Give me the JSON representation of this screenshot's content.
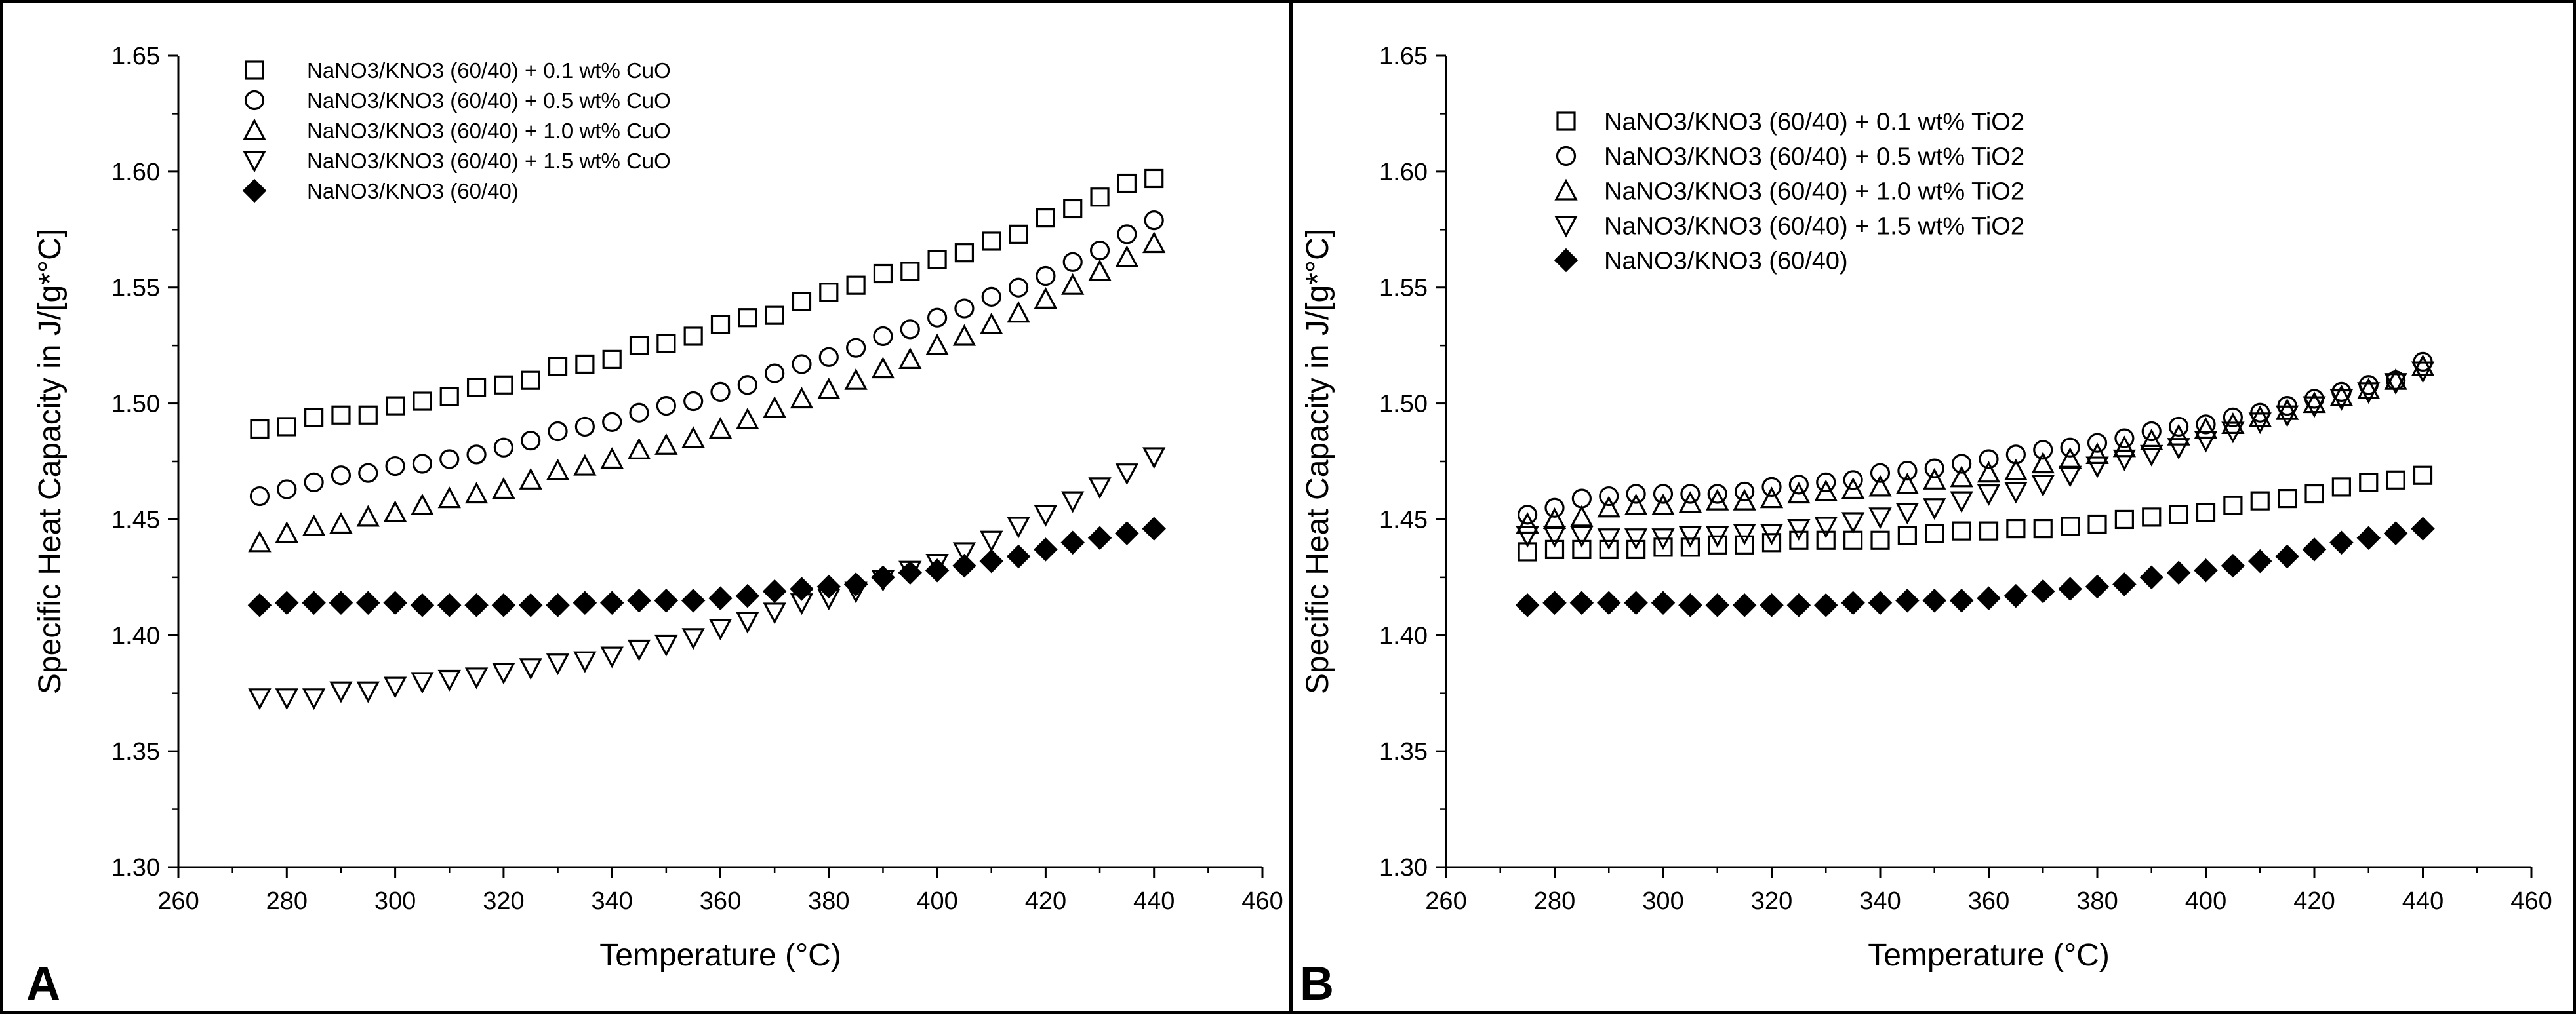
{
  "figure": {
    "panel_count": 2
  },
  "chart_data": [
    {
      "type": "scatter",
      "panel_label": "A",
      "title": "",
      "xlabel": "Temperature (°C)",
      "ylabel": "Specific Heat Capacity in J/[g*°C]",
      "xlim": [
        260,
        460
      ],
      "ylim": [
        1.3,
        1.65
      ],
      "x_ticks": [
        260,
        280,
        300,
        320,
        340,
        360,
        380,
        400,
        420,
        440,
        460
      ],
      "y_ticks": [
        1.3,
        1.35,
        1.4,
        1.45,
        1.5,
        1.55,
        1.6,
        1.65
      ],
      "x_tick_labels": [
        "260",
        "280",
        "300",
        "320",
        "340",
        "360",
        "380",
        "400",
        "420",
        "440",
        "460"
      ],
      "y_tick_labels": [
        "1.30",
        "1.35",
        "1.40",
        "1.45",
        "1.50",
        "1.55",
        "1.60",
        "1.65"
      ],
      "grid": false,
      "legend_position": "top-left",
      "x": [
        275,
        280,
        285,
        290,
        295,
        300,
        305,
        310,
        315,
        320,
        325,
        330,
        335,
        340,
        345,
        350,
        355,
        360,
        365,
        370,
        375,
        380,
        385,
        390,
        395,
        400,
        405,
        410,
        415,
        420,
        425,
        430,
        435,
        440
      ],
      "series": [
        {
          "name": "NaNO3/KNO3 (60/40) + 0.1 wt% CuO",
          "marker": "square",
          "values": [
            1.489,
            1.49,
            1.494,
            1.495,
            1.495,
            1.499,
            1.501,
            1.503,
            1.507,
            1.508,
            1.51,
            1.516,
            1.517,
            1.519,
            1.525,
            1.526,
            1.529,
            1.534,
            1.537,
            1.538,
            1.544,
            1.548,
            1.551,
            1.556,
            1.557,
            1.562,
            1.565,
            1.57,
            1.573,
            1.58,
            1.584,
            1.589,
            1.595,
            1.597
          ]
        },
        {
          "name": "NaNO3/KNO3 (60/40) + 0.5 wt% CuO",
          "marker": "circle",
          "values": [
            1.46,
            1.463,
            1.466,
            1.469,
            1.47,
            1.473,
            1.474,
            1.476,
            1.478,
            1.481,
            1.484,
            1.488,
            1.49,
            1.492,
            1.496,
            1.499,
            1.501,
            1.505,
            1.508,
            1.513,
            1.517,
            1.52,
            1.524,
            1.529,
            1.532,
            1.537,
            1.541,
            1.546,
            1.55,
            1.555,
            1.561,
            1.566,
            1.573,
            1.579
          ]
        },
        {
          "name": "NaNO3/KNO3 (60/40) + 1.0 wt% CuO",
          "marker": "triangle-up",
          "values": [
            1.44,
            1.444,
            1.447,
            1.448,
            1.451,
            1.453,
            1.456,
            1.459,
            1.461,
            1.463,
            1.467,
            1.471,
            1.473,
            1.476,
            1.48,
            1.482,
            1.485,
            1.489,
            1.493,
            1.498,
            1.502,
            1.506,
            1.51,
            1.515,
            1.519,
            1.525,
            1.529,
            1.534,
            1.539,
            1.545,
            1.551,
            1.557,
            1.563,
            1.569
          ]
        },
        {
          "name": "NaNO3/KNO3 (60/40) + 1.5 wt% CuO",
          "marker": "triangle-down",
          "values": [
            1.373,
            1.373,
            1.373,
            1.376,
            1.376,
            1.378,
            1.38,
            1.381,
            1.382,
            1.384,
            1.386,
            1.388,
            1.389,
            1.391,
            1.394,
            1.396,
            1.399,
            1.403,
            1.406,
            1.41,
            1.414,
            1.416,
            1.419,
            1.424,
            1.428,
            1.431,
            1.436,
            1.441,
            1.447,
            1.452,
            1.458,
            1.464,
            1.47,
            1.477
          ]
        },
        {
          "name": "NaNO3/KNO3 (60/40)",
          "marker": "diamond-filled",
          "values": [
            1.413,
            1.414,
            1.414,
            1.414,
            1.414,
            1.414,
            1.413,
            1.413,
            1.413,
            1.413,
            1.413,
            1.413,
            1.414,
            1.414,
            1.415,
            1.415,
            1.415,
            1.416,
            1.417,
            1.419,
            1.42,
            1.421,
            1.422,
            1.425,
            1.427,
            1.428,
            1.43,
            1.432,
            1.434,
            1.437,
            1.44,
            1.442,
            1.444,
            1.446
          ]
        }
      ]
    },
    {
      "type": "scatter",
      "panel_label": "B",
      "title": "",
      "xlabel": "Temperature (°C)",
      "ylabel": "Specific Heat Capacity in J/[g*°C]",
      "xlim": [
        260,
        460
      ],
      "ylim": [
        1.3,
        1.65
      ],
      "x_ticks": [
        260,
        280,
        300,
        320,
        340,
        360,
        380,
        400,
        420,
        440,
        460
      ],
      "y_ticks": [
        1.3,
        1.35,
        1.4,
        1.45,
        1.5,
        1.55,
        1.6,
        1.65
      ],
      "x_tick_labels": [
        "260",
        "280",
        "300",
        "320",
        "340",
        "360",
        "380",
        "400",
        "420",
        "440",
        "460"
      ],
      "y_tick_labels": [
        "1.30",
        "1.35",
        "1.40",
        "1.45",
        "1.50",
        "1.55",
        "1.60",
        "1.65"
      ],
      "grid": false,
      "legend_position": "top-center",
      "x": [
        275,
        280,
        285,
        290,
        295,
        300,
        305,
        310,
        315,
        320,
        325,
        330,
        335,
        340,
        345,
        350,
        355,
        360,
        365,
        370,
        375,
        380,
        385,
        390,
        395,
        400,
        405,
        410,
        415,
        420,
        425,
        430,
        435,
        440
      ],
      "series": [
        {
          "name": "NaNO3/KNO3 (60/40) + 0.1 wt% TiO2",
          "marker": "square",
          "values": [
            1.436,
            1.437,
            1.437,
            1.437,
            1.437,
            1.438,
            1.438,
            1.439,
            1.439,
            1.44,
            1.441,
            1.441,
            1.441,
            1.441,
            1.443,
            1.444,
            1.445,
            1.445,
            1.446,
            1.446,
            1.447,
            1.448,
            1.45,
            1.451,
            1.452,
            1.453,
            1.456,
            1.458,
            1.459,
            1.461,
            1.464,
            1.466,
            1.467,
            1.469
          ]
        },
        {
          "name": "NaNO3/KNO3 (60/40) + 0.5 wt% TiO2",
          "marker": "circle",
          "values": [
            1.452,
            1.455,
            1.459,
            1.46,
            1.461,
            1.461,
            1.461,
            1.461,
            1.462,
            1.464,
            1.465,
            1.466,
            1.467,
            1.47,
            1.471,
            1.472,
            1.474,
            1.476,
            1.478,
            1.48,
            1.481,
            1.483,
            1.485,
            1.488,
            1.49,
            1.491,
            1.494,
            1.496,
            1.499,
            1.502,
            1.505,
            1.508,
            1.51,
            1.518
          ]
        },
        {
          "name": "NaNO3/KNO3 (60/40) + 1.0 wt% TiO2",
          "marker": "triangle-up",
          "values": [
            1.448,
            1.45,
            1.451,
            1.455,
            1.456,
            1.456,
            1.457,
            1.458,
            1.458,
            1.459,
            1.461,
            1.462,
            1.463,
            1.464,
            1.465,
            1.467,
            1.468,
            1.47,
            1.471,
            1.474,
            1.476,
            1.478,
            1.481,
            1.484,
            1.486,
            1.489,
            1.491,
            1.494,
            1.497,
            1.5,
            1.503,
            1.506,
            1.51,
            1.516
          ]
        },
        {
          "name": "NaNO3/KNO3 (60/40) + 1.5 wt% TiO2",
          "marker": "triangle-down",
          "values": [
            1.443,
            1.443,
            1.443,
            1.442,
            1.442,
            1.442,
            1.443,
            1.443,
            1.444,
            1.444,
            1.446,
            1.447,
            1.449,
            1.451,
            1.453,
            1.455,
            1.458,
            1.461,
            1.462,
            1.465,
            1.469,
            1.473,
            1.476,
            1.478,
            1.481,
            1.484,
            1.488,
            1.492,
            1.495,
            1.499,
            1.502,
            1.505,
            1.509,
            1.514
          ]
        },
        {
          "name": "NaNO3/KNO3 (60/40)",
          "marker": "diamond-filled",
          "values": [
            1.413,
            1.414,
            1.414,
            1.414,
            1.414,
            1.414,
            1.413,
            1.413,
            1.413,
            1.413,
            1.413,
            1.413,
            1.414,
            1.414,
            1.415,
            1.415,
            1.415,
            1.416,
            1.417,
            1.419,
            1.42,
            1.421,
            1.422,
            1.425,
            1.427,
            1.428,
            1.43,
            1.432,
            1.434,
            1.437,
            1.44,
            1.442,
            1.444,
            1.446
          ]
        }
      ]
    }
  ]
}
